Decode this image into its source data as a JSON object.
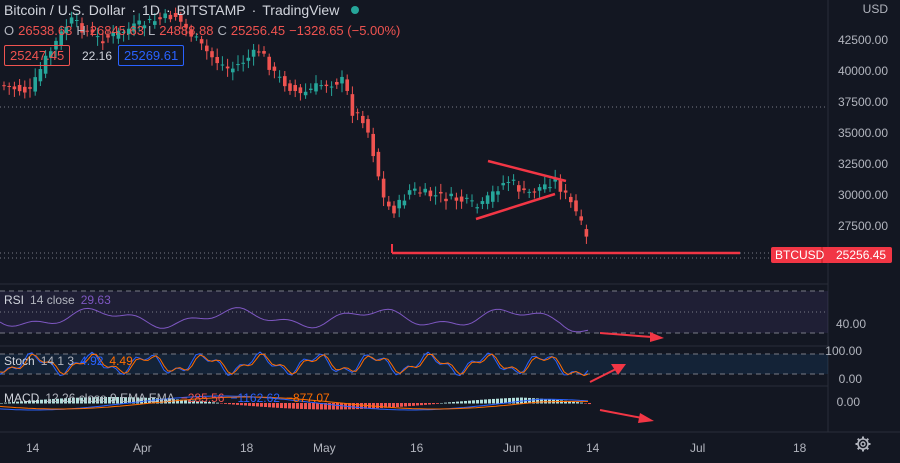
{
  "header": {
    "symbol": "Bitcoin / U.S. Dollar",
    "interval": "1D",
    "exchange": "BITSTAMP",
    "provider": "TradingView",
    "open_label": "O",
    "open": "26538.63",
    "high_label": "H",
    "high": "26845.63",
    "low_label": "L",
    "low": "24888.88",
    "close_label": "C",
    "close": "25256.45",
    "change": "−1328.65 (−5.00%)",
    "bid": "25247.45",
    "spread": "22.16",
    "ask": "25269.61"
  },
  "price_axis": {
    "currency": "USD",
    "ticks": [
      "42500.00",
      "40000.00",
      "37500.00",
      "35000.00",
      "32500.00",
      "30000.00",
      "27500.00"
    ],
    "last_symbol": "BTCUSD",
    "last_price": "25256.45"
  },
  "rsi": {
    "name": "RSI",
    "params": "14 close",
    "value": "29.63",
    "tick": "40.00"
  },
  "stoch": {
    "name": "Stoch",
    "params": "14 1 3",
    "k": "4.92",
    "d": "4.49",
    "tick_top": "100.00",
    "tick_bottom": "0.00"
  },
  "macd": {
    "name": "MACD",
    "params": "12 26 close 9 EMA EMA",
    "hist": "−285.56",
    "macd": "−1162.62",
    "signal": "−877.07",
    "tick": "0.00"
  },
  "time_axis": [
    "14",
    "Apr",
    "18",
    "May",
    "16",
    "Jun",
    "14",
    "Jul",
    "18"
  ],
  "colors": {
    "background": "#131722",
    "up": "#26a69a",
    "down": "#ef5350",
    "annotation": "#f23645",
    "rsi": "#7e57c2",
    "stoch_k": "#2962ff",
    "stoch_d": "#ff6d00"
  },
  "toolbar": {
    "settings_icon": "gear-icon"
  }
}
